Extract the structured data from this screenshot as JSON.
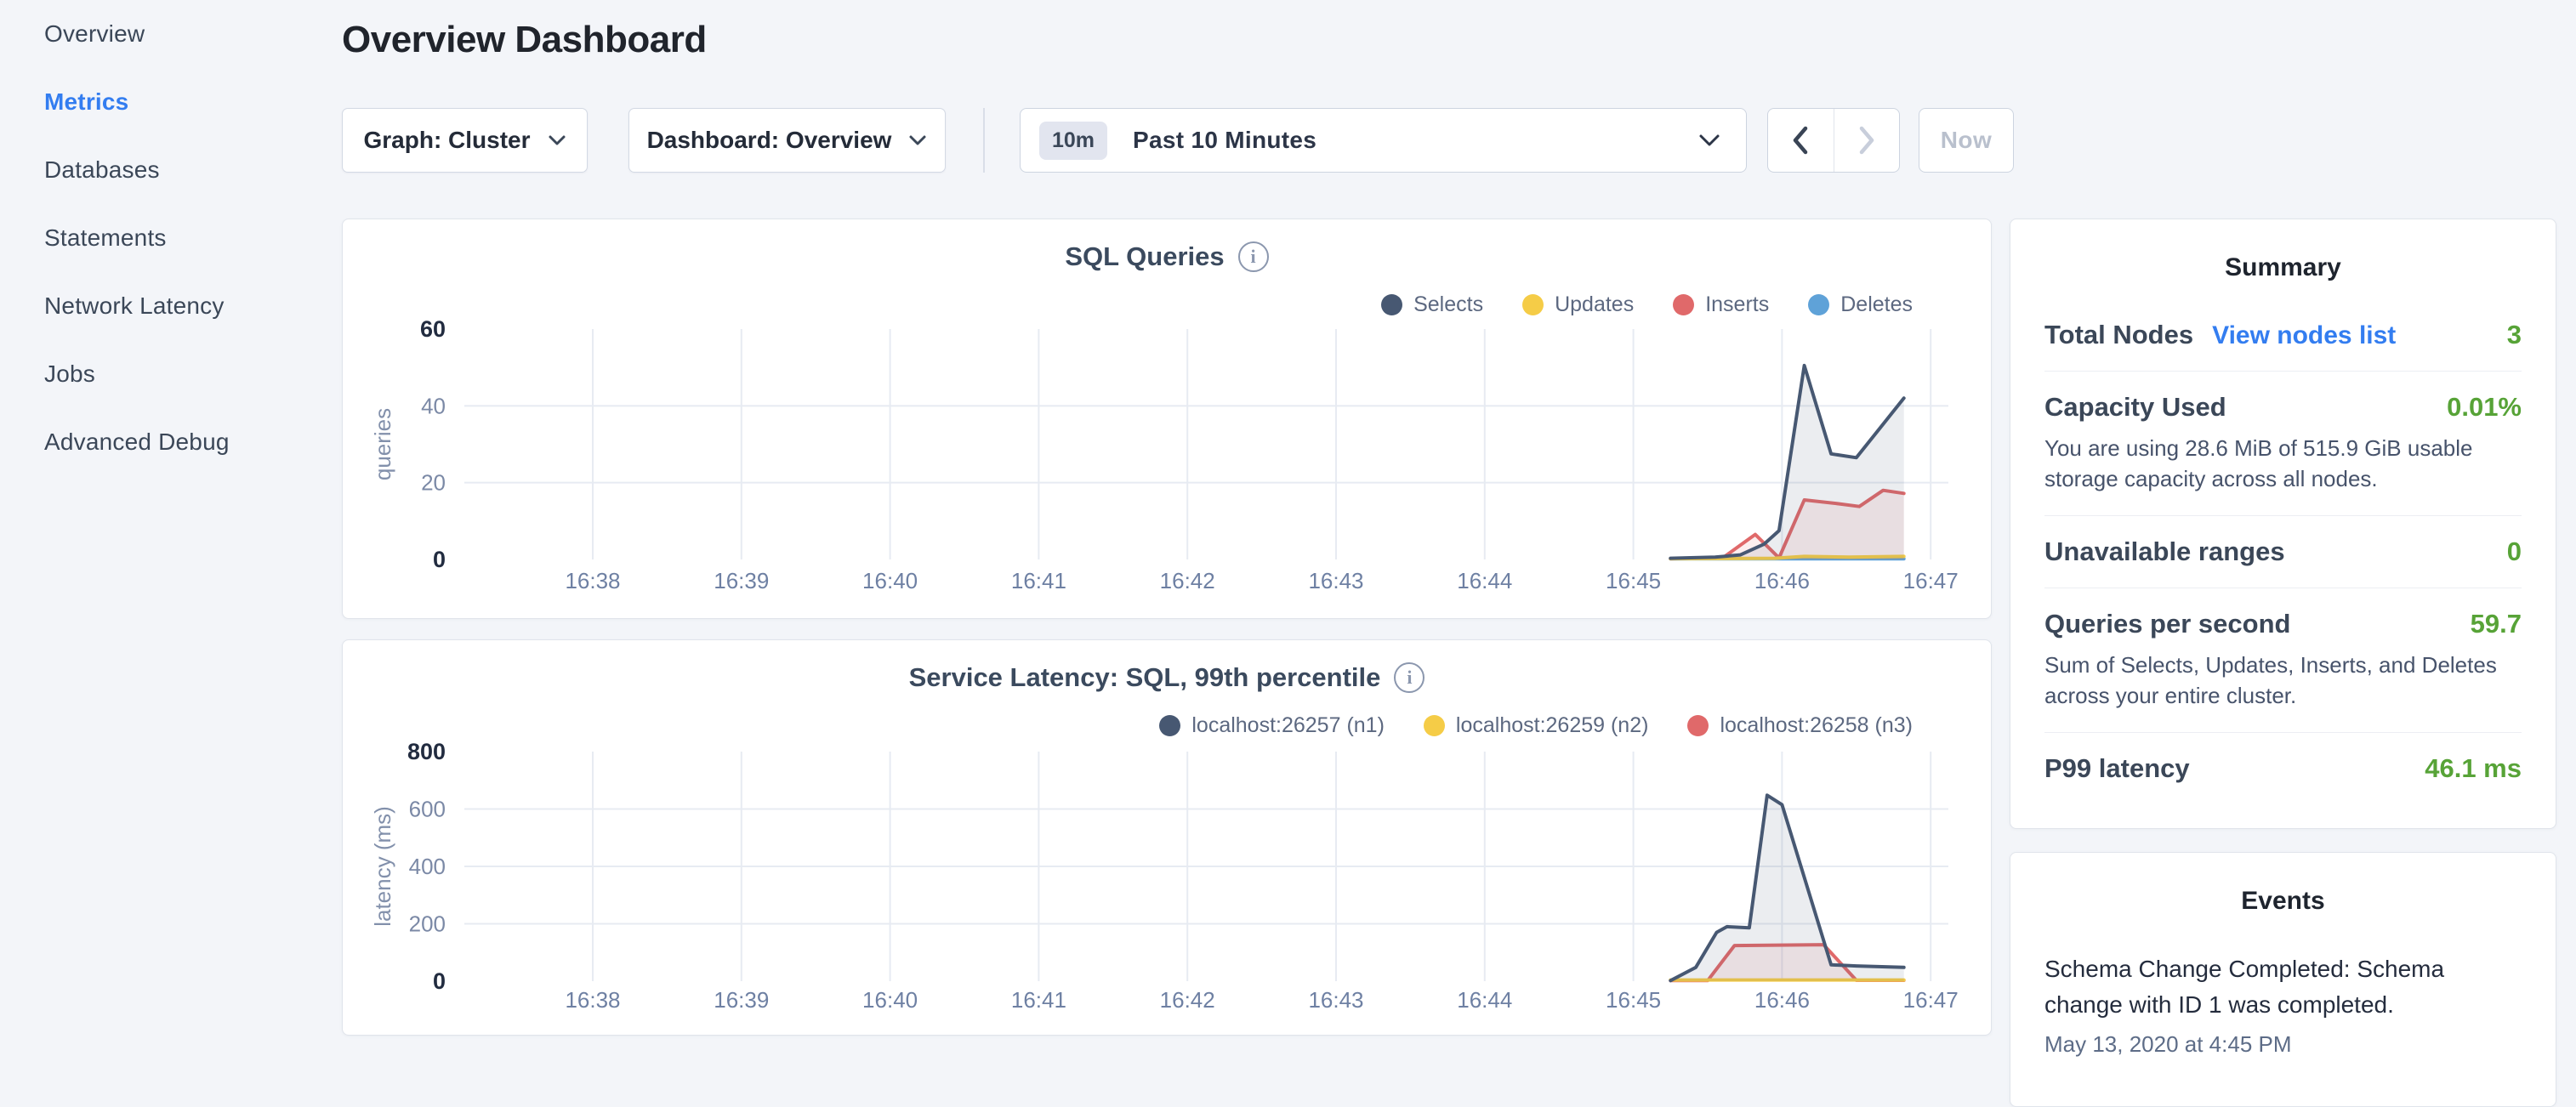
{
  "sidebar": {
    "items": [
      {
        "label": "Overview",
        "active": false
      },
      {
        "label": "Metrics",
        "active": true
      },
      {
        "label": "Databases",
        "active": false
      },
      {
        "label": "Statements",
        "active": false
      },
      {
        "label": "Network Latency",
        "active": false
      },
      {
        "label": "Jobs",
        "active": false
      },
      {
        "label": "Advanced Debug",
        "active": false
      }
    ]
  },
  "header": {
    "title": "Overview Dashboard"
  },
  "controls": {
    "graph_select": "Graph: Cluster",
    "dashboard_select": "Dashboard: Overview",
    "time_badge": "10m",
    "time_label": "Past 10 Minutes",
    "now_label": "Now"
  },
  "chart_data": [
    {
      "type": "area",
      "title": "SQL Queries",
      "ylabel": "queries",
      "ylim": [
        0,
        60
      ],
      "yticks": [
        0,
        20,
        40,
        60
      ],
      "x_tick_labels": [
        "16:38",
        "16:39",
        "16:40",
        "16:41",
        "16:42",
        "16:43",
        "16:44",
        "16:45",
        "16:46",
        "16:47"
      ],
      "x_unit": "minutes after 16:38",
      "grid": true,
      "legend_position": "top-right",
      "series": [
        {
          "name": "Selects",
          "color": "#475872",
          "points": [
            [
              7.25,
              0.3
            ],
            [
              7.55,
              0.6
            ],
            [
              7.72,
              1.2
            ],
            [
              7.88,
              4
            ],
            [
              7.98,
              7.5
            ],
            [
              8.15,
              50.5
            ],
            [
              8.33,
              27.5
            ],
            [
              8.5,
              26.5
            ],
            [
              8.82,
              42
            ]
          ]
        },
        {
          "name": "Updates",
          "color": "#f5cc47",
          "points": [
            [
              7.25,
              0.2
            ],
            [
              7.95,
              0.3
            ],
            [
              8.15,
              0.8
            ],
            [
              8.45,
              0.6
            ],
            [
              8.82,
              0.8
            ]
          ]
        },
        {
          "name": "Inserts",
          "color": "#e0696a",
          "points": [
            [
              7.25,
              0.2
            ],
            [
              7.6,
              0.4
            ],
            [
              7.82,
              6.5
            ],
            [
              7.98,
              0.4
            ],
            [
              8.15,
              15.5
            ],
            [
              8.38,
              14.5
            ],
            [
              8.52,
              13.8
            ],
            [
              8.68,
              18
            ],
            [
              8.82,
              17.2
            ]
          ]
        },
        {
          "name": "Deletes",
          "color": "#5fa2d8",
          "points": [
            [
              7.25,
              0.15
            ],
            [
              8.82,
              0.15
            ]
          ]
        }
      ]
    },
    {
      "type": "area",
      "title": "Service Latency: SQL, 99th percentile",
      "ylabel": "latency (ms)",
      "ylim": [
        0,
        800
      ],
      "yticks": [
        0,
        200,
        400,
        600,
        800
      ],
      "x_tick_labels": [
        "16:38",
        "16:39",
        "16:40",
        "16:41",
        "16:42",
        "16:43",
        "16:44",
        "16:45",
        "16:46",
        "16:47"
      ],
      "x_unit": "minutes after 16:38",
      "grid": true,
      "legend_position": "top-right",
      "series": [
        {
          "name": "localhost:26257 (n1)",
          "color": "#475872",
          "points": [
            [
              7.25,
              2
            ],
            [
              7.42,
              48
            ],
            [
              7.56,
              170
            ],
            [
              7.63,
              190
            ],
            [
              7.78,
              186
            ],
            [
              7.9,
              648
            ],
            [
              8.0,
              615
            ],
            [
              8.33,
              57
            ],
            [
              8.5,
              53
            ],
            [
              8.82,
              48
            ]
          ]
        },
        {
          "name": "localhost:26259 (n2)",
          "color": "#f5cc47",
          "points": [
            [
              7.25,
              4
            ],
            [
              8.82,
              4
            ]
          ]
        },
        {
          "name": "localhost:26258 (n3)",
          "color": "#e0696a",
          "points": [
            [
              7.25,
              2
            ],
            [
              7.5,
              2
            ],
            [
              7.68,
              124
            ],
            [
              8.28,
              127
            ],
            [
              8.5,
              3
            ],
            [
              8.82,
              3
            ]
          ]
        }
      ]
    }
  ],
  "summary": {
    "title": "Summary",
    "rows": [
      {
        "label": "Total Nodes",
        "link": "View nodes list",
        "value": "3"
      },
      {
        "label": "Capacity Used",
        "value": "0.01%",
        "description": "You are using 28.6 MiB of 515.9 GiB usable storage capacity across all nodes."
      },
      {
        "label": "Unavailable ranges",
        "value": "0"
      },
      {
        "label": "Queries per second",
        "value": "59.7",
        "description": "Sum of Selects, Updates, Inserts, and Deletes across your entire cluster."
      },
      {
        "label": "P99 latency",
        "value": "46.1 ms"
      }
    ]
  },
  "events": {
    "title": "Events",
    "items": [
      {
        "message": "Schema Change Completed: Schema change with ID 1 was completed.",
        "timestamp": "May 13, 2020 at 4:45 PM"
      }
    ]
  },
  "colors": {
    "accent_blue": "#337df0",
    "value_green": "#57a337",
    "series_navy": "#475872",
    "series_yellow": "#f5cc47",
    "series_red": "#e0696a",
    "series_blue": "#5fa2d8"
  }
}
